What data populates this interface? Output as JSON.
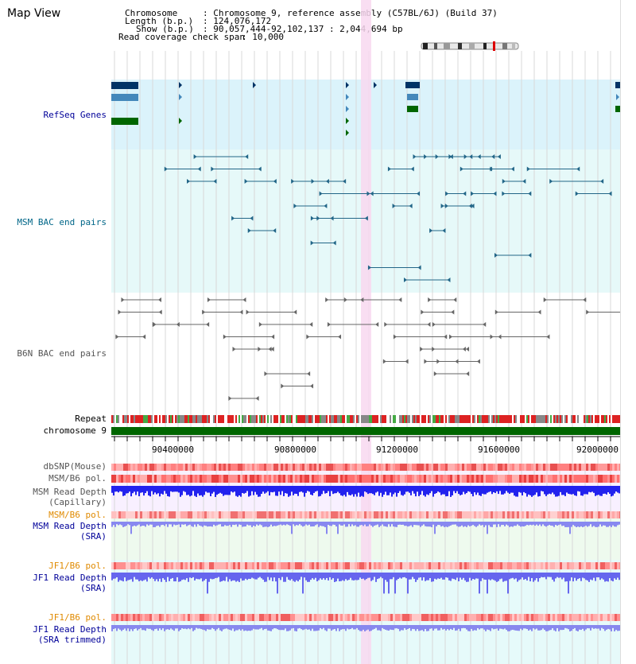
{
  "title": "Map View",
  "info": {
    "chromosome_key": "Chromosome",
    "chromosome_val": ": Chromosome 9, reference assembly (C57BL/6J) (Build 37)",
    "length_key": "Length (b.p.)",
    "length_val": ": 124,076,172",
    "show_key": "Show (b.p.)",
    "show_val": ": 90,057,444-92,102,137 : 2,044,694 bp",
    "coverage_key": "Read coverage check span",
    "coverage_val": ": 10,000"
  },
  "tracks": {
    "refseq": "RefSeq Genes",
    "msm_bac": "MSM BAC end pairs",
    "b6n_bac": "B6N BAC end pairs",
    "repeat": "Repeat",
    "chromosome": "chromosome 9",
    "dbsnp": "dbSNP(Mouse)",
    "msm_b6_pol_1": "MSM/B6 pol.",
    "msm_depth_cap_1": "MSM Read Depth",
    "msm_depth_cap_2": "(Capillary)",
    "msm_b6_pol_2": "MSM/B6 pol.",
    "msm_depth_sra_1": "MSM Read Depth",
    "msm_depth_sra_2": "(SRA)",
    "jf1_b6_pol_1": "JF1/B6 pol.",
    "jf1_depth_sra_1": "JF1 Read Depth",
    "jf1_depth_sra_2": "(SRA)",
    "jf1_b6_pol_2": "JF1/B6 pol.",
    "jf1_depth_trim_1": "JF1 Read Depth",
    "jf1_depth_trim_2": "(SRA trimmed)"
  },
  "axis": {
    "ticks": [
      "90400000",
      "90800000",
      "91200000",
      "91600000",
      "92000000"
    ]
  },
  "colors": {
    "refseq_bg": "#dbf3fb",
    "msm_bg": "#e6f9f9",
    "b6n_bg": "#ffffff",
    "highlight": "#f8d8f0",
    "refseq_label": "#000099",
    "msm_label": "#006688",
    "b6n_label": "#555555",
    "pol_orange": "#e08a00",
    "depth_blue": "#2020e0",
    "chromosome_green": "#006600"
  }
}
